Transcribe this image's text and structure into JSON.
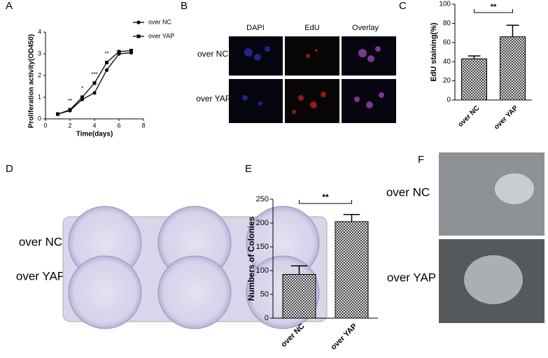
{
  "chart_data": [
    {
      "type": "line",
      "panel_label": "A",
      "ylabel": "Proliferation activity(OD450)",
      "xlabel": "Time(days)",
      "xlim": [
        0,
        8
      ],
      "xticks": [
        0,
        2,
        4,
        6,
        8
      ],
      "ylim": [
        0,
        4
      ],
      "yticks": [
        0,
        1,
        2,
        3,
        4
      ],
      "series": [
        {
          "name": "over NC",
          "marker": "circle",
          "color": "#000000",
          "x": [
            1,
            2,
            3,
            4,
            5,
            6,
            7
          ],
          "values": [
            0.22,
            0.38,
            0.9,
            1.2,
            2.25,
            3.0,
            3.05
          ]
        },
        {
          "name": "over YAP",
          "marker": "square",
          "color": "#000000",
          "x": [
            1,
            2,
            3,
            4,
            5,
            6,
            7
          ],
          "values": [
            0.22,
            0.42,
            1.0,
            1.65,
            2.6,
            3.1,
            3.15
          ]
        }
      ],
      "annotations": [
        "**",
        "*",
        "***",
        "**"
      ]
    },
    {
      "type": "bar",
      "panel_label": "C",
      "ylabel": "EdU staining(%)",
      "categories": [
        "over NC",
        "over YAP"
      ],
      "values": [
        43,
        66
      ],
      "errors": [
        3,
        12
      ],
      "ylim": [
        0,
        100
      ],
      "yticks": [
        0,
        20,
        40,
        60,
        80,
        100
      ],
      "significance": "**"
    },
    {
      "type": "bar",
      "panel_label": "E",
      "ylabel": "Numbers of Colonies",
      "categories": [
        "over NC",
        "over YAP"
      ],
      "values": [
        92,
        203
      ],
      "errors": [
        18,
        15
      ],
      "ylim": [
        0,
        250
      ],
      "yticks": [
        0,
        50,
        100,
        150,
        200,
        250
      ],
      "significance": "**"
    }
  ],
  "panels": {
    "B": {
      "label": "B",
      "columns": [
        "DAPI",
        "EdU",
        "Overlay"
      ],
      "rows": [
        "over NC",
        "over YAP"
      ]
    },
    "D": {
      "label": "D",
      "rows": [
        "over NC",
        "over YAP"
      ]
    },
    "F": {
      "label": "F",
      "rows": [
        "over NC",
        "over YAP"
      ]
    }
  }
}
